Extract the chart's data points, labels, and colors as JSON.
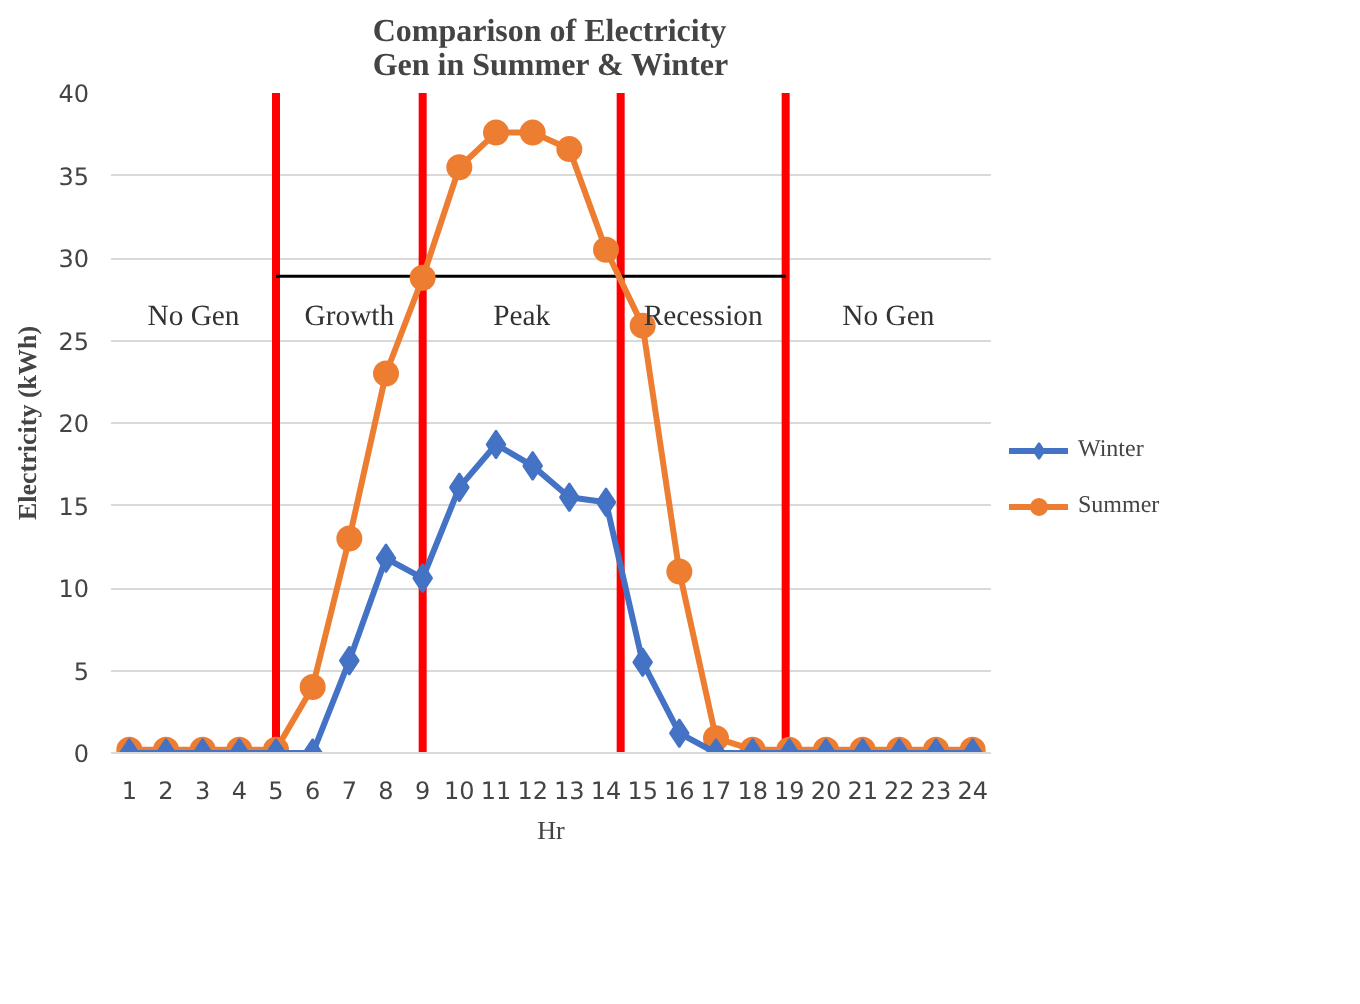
{
  "chart_data": {
    "type": "line",
    "title": "Comparison of Electricity\nGen in Summer & Winter",
    "xlabel": "Hr",
    "ylabel": "Electricity (kWh)",
    "x": [
      1,
      2,
      3,
      4,
      5,
      6,
      7,
      8,
      9,
      10,
      11,
      12,
      13,
      14,
      15,
      16,
      17,
      18,
      19,
      20,
      21,
      22,
      23,
      24
    ],
    "xlim": [
      0.5,
      24.5
    ],
    "xticks": [
      1,
      2,
      3,
      4,
      5,
      6,
      7,
      8,
      9,
      10,
      11,
      12,
      13,
      14,
      15,
      16,
      17,
      18,
      19,
      20,
      21,
      22,
      23,
      24
    ],
    "ylim": [
      0,
      40
    ],
    "yticks": [
      0,
      5,
      10,
      15,
      20,
      25,
      30,
      35,
      40
    ],
    "grid": "y",
    "legend": "right",
    "series": [
      {
        "name": "Winter",
        "color": "#4472c4",
        "marker": "diamond",
        "values": [
          0,
          0,
          0,
          0,
          0,
          0,
          5.6,
          11.8,
          10.6,
          16.1,
          18.7,
          17.4,
          15.5,
          15.2,
          5.5,
          1.2,
          0,
          0,
          0,
          0,
          0,
          0,
          0,
          0
        ]
      },
      {
        "name": "Summer",
        "color": "#ed7d31",
        "marker": "circle",
        "values": [
          0.2,
          0.2,
          0.2,
          0.2,
          0.2,
          4.0,
          13.0,
          23.0,
          28.8,
          35.5,
          37.6,
          37.6,
          36.6,
          30.5,
          25.9,
          11.0,
          0.9,
          0.2,
          0.2,
          0.2,
          0.2,
          0.2,
          0.2,
          0.2
        ]
      },
      {
        "color": "#000000",
        "marker": "none",
        "x": [
          5,
          18.9
        ],
        "values": [
          28.9,
          28.9
        ]
      }
    ],
    "ref_lines": [
      {
        "axis": "x",
        "value": 5,
        "color": "#ff0000"
      },
      {
        "axis": "x",
        "value": 9,
        "color": "#ff0000"
      },
      {
        "axis": "x",
        "value": 14.4,
        "color": "#ff0000"
      },
      {
        "axis": "x",
        "value": 18.9,
        "color": "#ff0000"
      }
    ],
    "annotations": [
      "No Gen",
      "Growth",
      "Peak",
      "Recession",
      "No Gen"
    ]
  }
}
